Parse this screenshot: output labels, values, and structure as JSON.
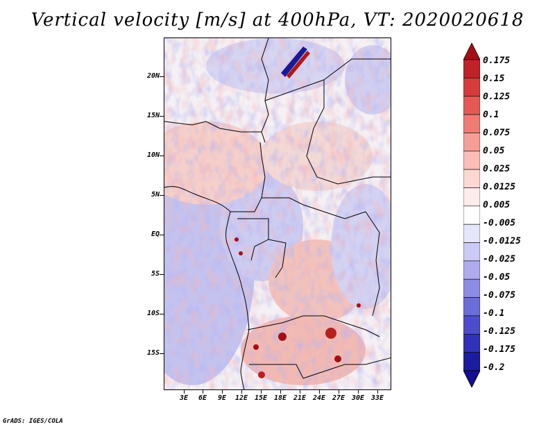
{
  "title": "Vertical velocity [m/s] at 400hPa, VT: 2020020618",
  "footer": "GrADS: IGES/COLA",
  "lat_labels": [
    "20N",
    "15N",
    "10N",
    "5N",
    "EQ",
    "5S",
    "10S",
    "15S"
  ],
  "lon_labels": [
    "3E",
    "6E",
    "9E",
    "12E",
    "15E",
    "18E",
    "21E",
    "24E",
    "27E",
    "30E",
    "33E"
  ],
  "colorbar": {
    "labels": [
      "0.175",
      "0.15",
      "0.125",
      "0.1",
      "0.075",
      "0.05",
      "0.025",
      "0.0125",
      "0.005",
      "-0.005",
      "-0.0125",
      "-0.025",
      "-0.05",
      "-0.075",
      "-0.1",
      "-0.125",
      "-0.175",
      "-0.2"
    ],
    "colors": [
      "#a50e15",
      "#c0222a",
      "#d73c3c",
      "#e35a55",
      "#ee7c74",
      "#f59e95",
      "#fbbdb6",
      "#fdd8d3",
      "#fdeceb",
      "#ffffff",
      "#e6e6fa",
      "#cacaf4",
      "#acacee",
      "#8c8ce4",
      "#6c6cda",
      "#4d4dcc",
      "#3030b8",
      "#1c1ca0",
      "#140f8c"
    ]
  },
  "map": {
    "field": "Vertical velocity",
    "level": "400hPa",
    "valid_time": "2020020618",
    "background_color": "#f4f0f4"
  }
}
